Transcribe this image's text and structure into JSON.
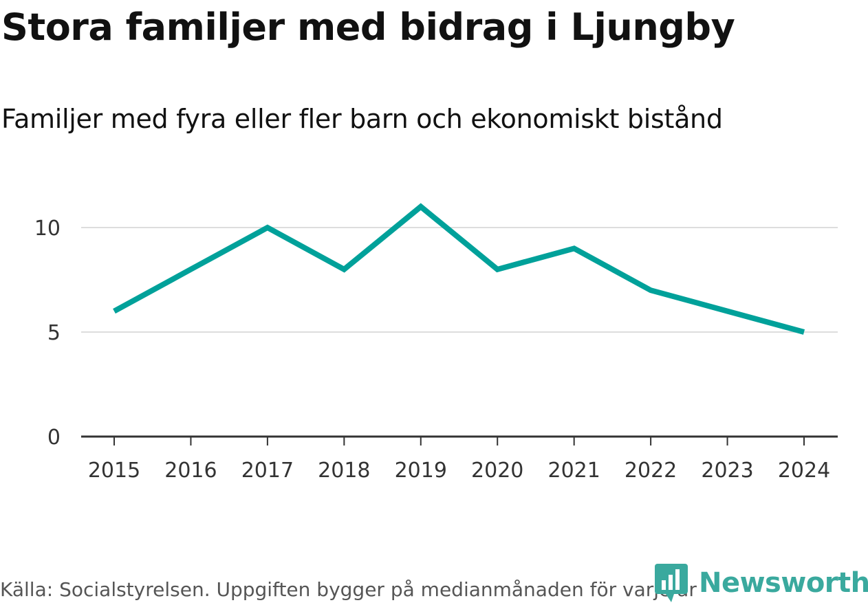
{
  "title": "Stora familjer med bidrag i Ljungby",
  "subtitle": "Familjer med fyra eller fler barn och ekonomiskt bistånd",
  "source": "Källa: Socialstyrelsen. Uppgiften bygger på medianmånaden för varje år",
  "brand": {
    "name": "Newsworthy",
    "color": "#3aa99e",
    "icon": "newsworthy-logo-icon"
  },
  "colors": {
    "line": "#00a19a",
    "grid": "#dddddd",
    "axis": "#333333"
  },
  "chart_data": {
    "type": "line",
    "title": "Stora familjer med bidrag i Ljungby",
    "subtitle": "Familjer med fyra eller fler barn och ekonomiskt bistånd",
    "xlabel": "",
    "ylabel": "",
    "categories": [
      "2015",
      "2016",
      "2017",
      "2018",
      "2019",
      "2020",
      "2021",
      "2022",
      "2023",
      "2024"
    ],
    "series": [
      {
        "values": [
          6,
          8,
          10,
          8,
          11,
          8,
          9,
          7,
          6,
          5
        ]
      }
    ],
    "ylim": [
      0,
      11
    ],
    "yticks": [
      0,
      5,
      10
    ],
    "grid": true,
    "legend": "none"
  }
}
